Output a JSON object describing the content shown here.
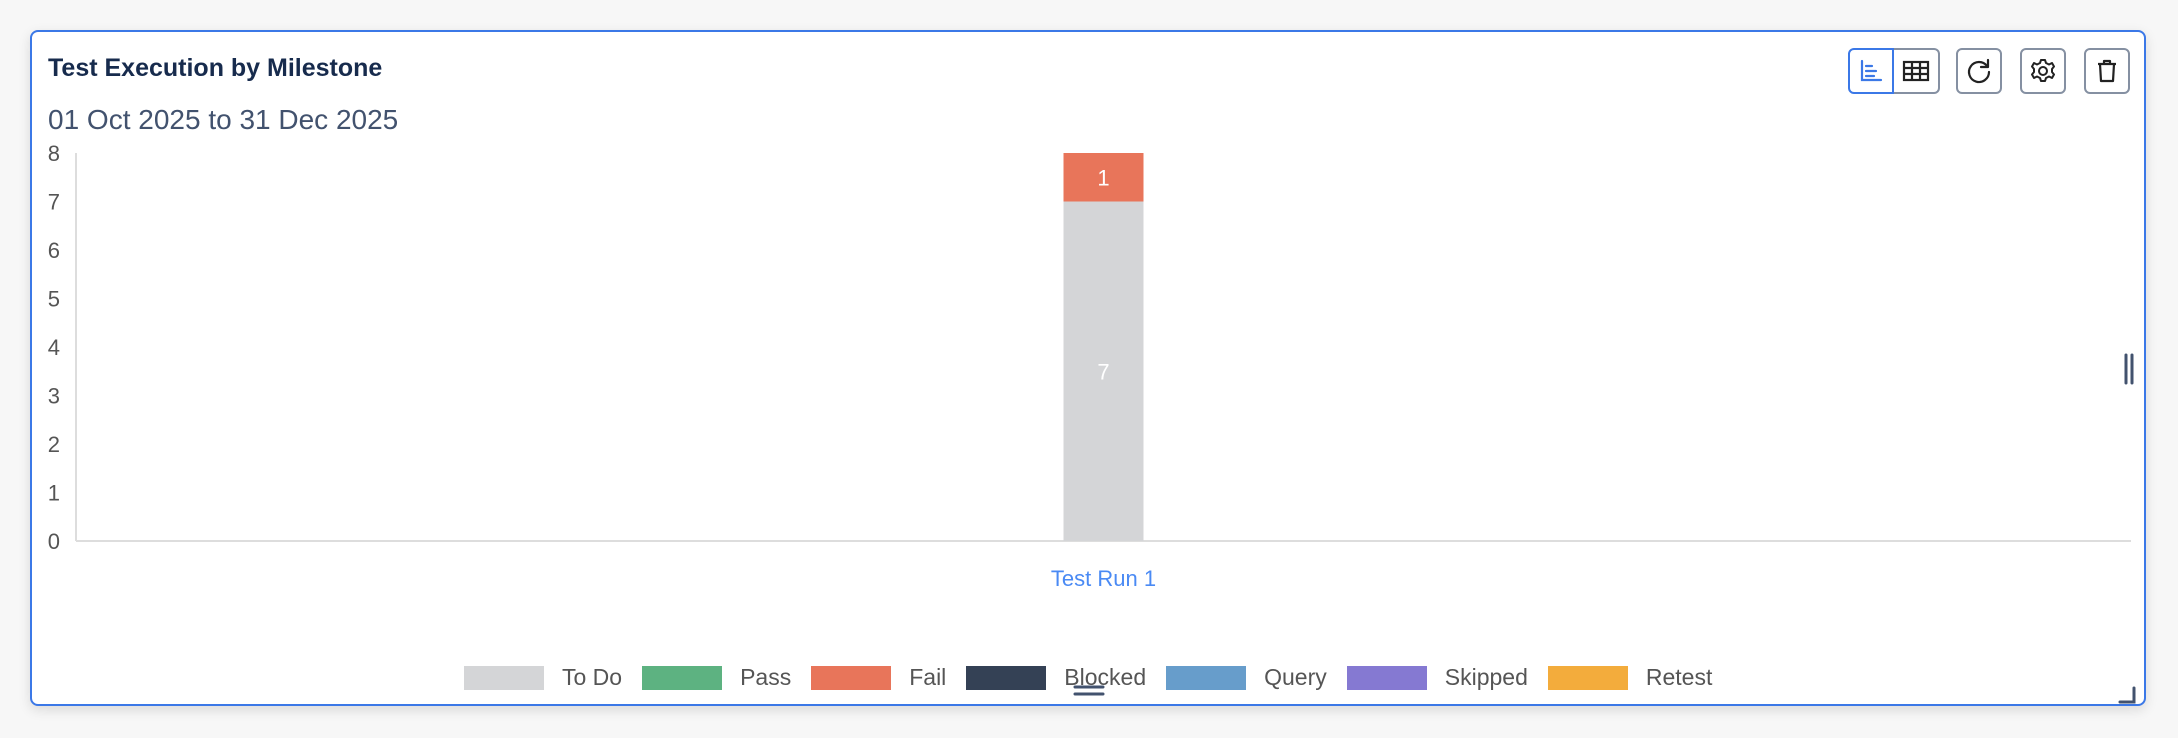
{
  "widget": {
    "title": "Test Execution by Milestone",
    "subtitle": "01 Oct 2025 to 31 Dec 2025",
    "toolbar": {
      "chart_view_icon": "bar-chart-icon",
      "table_view_icon": "table-icon",
      "refresh_icon": "refresh-icon",
      "settings_icon": "gear-icon",
      "delete_icon": "trash-icon"
    },
    "accent_color": "#3b78e7"
  },
  "chart_data": {
    "type": "bar",
    "stacked": true,
    "categories": [
      "Test Run 1"
    ],
    "ylim": [
      0,
      8
    ],
    "yticks": [
      "0",
      "1",
      "2",
      "3",
      "4",
      "5",
      "6",
      "7",
      "8"
    ],
    "grid": false,
    "legend_placement": "bottom",
    "series": [
      {
        "name": "To Do",
        "color": "#d4d5d7",
        "values": [
          7
        ]
      },
      {
        "name": "Pass",
        "color": "#5db281",
        "values": [
          0
        ]
      },
      {
        "name": "Fail",
        "color": "#e8755a",
        "values": [
          1
        ]
      },
      {
        "name": "Blocked",
        "color": "#344155",
        "values": [
          0
        ]
      },
      {
        "name": "Query",
        "color": "#679dcb",
        "values": [
          0
        ]
      },
      {
        "name": "Skipped",
        "color": "#8579d2",
        "values": [
          0
        ]
      },
      {
        "name": "Retest",
        "color": "#f3ac3c",
        "values": [
          0
        ]
      }
    ]
  }
}
